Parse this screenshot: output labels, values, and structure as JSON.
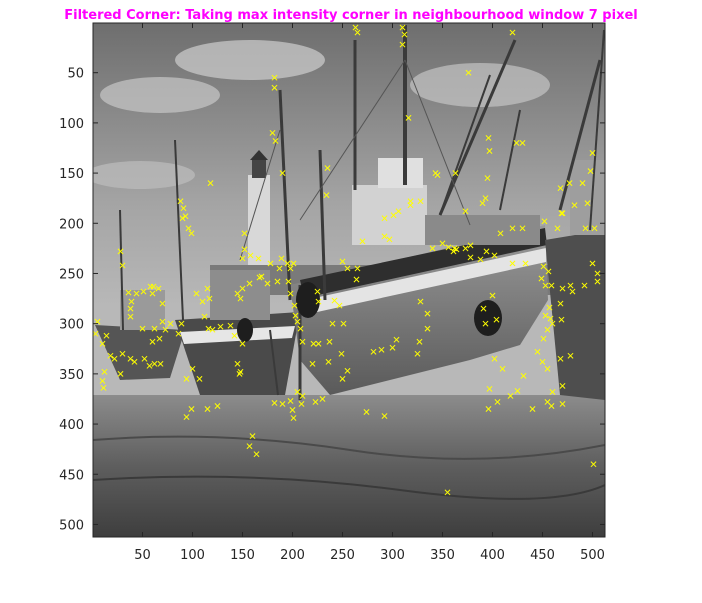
{
  "chart_data": {
    "type": "scatter",
    "title": "Filtered Corner: Taking max intensity corner in neighbourhood window 7 pixel",
    "title_color": "#ff00ff",
    "background": "grayscale photograph of fishing boats beached at low tide (512x512)",
    "marker": "x",
    "marker_color": "#ffff00",
    "xlim": [
      0.5,
      512.5
    ],
    "ylim": [
      0.5,
      512.5
    ],
    "y_reversed": true,
    "xticks": [
      50,
      100,
      150,
      200,
      250,
      300,
      350,
      400,
      450,
      500
    ],
    "yticks": [
      50,
      100,
      150,
      200,
      250,
      300,
      350,
      400,
      450,
      500
    ],
    "xlabel": "",
    "ylabel": "",
    "grid": false,
    "series": [
      {
        "points": [
          [
            263,
            5
          ],
          [
            310,
            5
          ],
          [
            312,
            12
          ],
          [
            310,
            22
          ],
          [
            265,
            10
          ],
          [
            420,
            10
          ],
          [
            376,
            50
          ],
          [
            182,
            55
          ],
          [
            182,
            65
          ],
          [
            316,
            95
          ],
          [
            396,
            115
          ],
          [
            397,
            128
          ],
          [
            424,
            120
          ],
          [
            430,
            120
          ],
          [
            180,
            110
          ],
          [
            183,
            118
          ],
          [
            190,
            150
          ],
          [
            235,
            145
          ],
          [
            343,
            150
          ],
          [
            363,
            150
          ],
          [
            234,
            172
          ],
          [
            390,
            180
          ],
          [
            395,
            155
          ],
          [
            345,
            152
          ],
          [
            318,
            178
          ],
          [
            318,
            182
          ],
          [
            328,
            178
          ],
          [
            393,
            175
          ],
          [
            500,
            130
          ],
          [
            498,
            148
          ],
          [
            490,
            160
          ],
          [
            477,
            160
          ],
          [
            468,
            165
          ],
          [
            469,
            190
          ],
          [
            482,
            182
          ],
          [
            495,
            180
          ],
          [
            493,
            205
          ],
          [
            502,
            205
          ],
          [
            470,
            190
          ],
          [
            465,
            205
          ],
          [
            452,
            198
          ],
          [
            420,
            205
          ],
          [
            430,
            205
          ],
          [
            408,
            210
          ],
          [
            373,
            188
          ],
          [
            306,
            188
          ],
          [
            301,
            192
          ],
          [
            292,
            195
          ],
          [
            292,
            213
          ],
          [
            297,
            216
          ],
          [
            270,
            218
          ],
          [
            265,
            245
          ],
          [
            264,
            256
          ],
          [
            255,
            245
          ],
          [
            250,
            238
          ],
          [
            350,
            220
          ],
          [
            356,
            224
          ],
          [
            364,
            226
          ],
          [
            373,
            225
          ],
          [
            378,
            222
          ],
          [
            394,
            228
          ],
          [
            402,
            232
          ],
          [
            420,
            240
          ],
          [
            433,
            240
          ],
          [
            451,
            243
          ],
          [
            456,
            248
          ],
          [
            449,
            255
          ],
          [
            453,
            262
          ],
          [
            459,
            262
          ],
          [
            470,
            265
          ],
          [
            478,
            262
          ],
          [
            492,
            262
          ],
          [
            500,
            240
          ],
          [
            505,
            250
          ],
          [
            505,
            258
          ],
          [
            480,
            268
          ],
          [
            468,
            280
          ],
          [
            457,
            284
          ],
          [
            453,
            292
          ],
          [
            458,
            295
          ],
          [
            460,
            300
          ],
          [
            469,
            296
          ],
          [
            455,
            306
          ],
          [
            451,
            315
          ],
          [
            445,
            328
          ],
          [
            450,
            338
          ],
          [
            455,
            345
          ],
          [
            468,
            335
          ],
          [
            478,
            332
          ],
          [
            470,
            362
          ],
          [
            460,
            368
          ],
          [
            455,
            378
          ],
          [
            459,
            382
          ],
          [
            470,
            380
          ],
          [
            440,
            385
          ],
          [
            431,
            352
          ],
          [
            425,
            367
          ],
          [
            418,
            372
          ],
          [
            405,
            378
          ],
          [
            396,
            385
          ],
          [
            397,
            365
          ],
          [
            402,
            335
          ],
          [
            410,
            345
          ],
          [
            393,
            300
          ],
          [
            391,
            285
          ],
          [
            362,
            225
          ],
          [
            340,
            225
          ],
          [
            328,
            278
          ],
          [
            335,
            290
          ],
          [
            335,
            305
          ],
          [
            327,
            318
          ],
          [
            325,
            330
          ],
          [
            304,
            316
          ],
          [
            300,
            324
          ],
          [
            289,
            326
          ],
          [
            281,
            328
          ],
          [
            255,
            347
          ],
          [
            249,
            330
          ],
          [
            240,
            300
          ],
          [
            247,
            282
          ],
          [
            242,
            277
          ],
          [
            225,
            268
          ],
          [
            226,
            278
          ],
          [
            226,
            320
          ],
          [
            237,
            318
          ],
          [
            236,
            338
          ],
          [
            250,
            355
          ],
          [
            251,
            300
          ],
          [
            205,
            298
          ],
          [
            208,
            305
          ],
          [
            210,
            318
          ],
          [
            221,
            320
          ],
          [
            220,
            340
          ],
          [
            205,
            368
          ],
          [
            210,
            372
          ],
          [
            230,
            375
          ],
          [
            223,
            378
          ],
          [
            198,
            377
          ],
          [
            209,
            380
          ],
          [
            200,
            386
          ],
          [
            201,
            394
          ],
          [
            182,
            379
          ],
          [
            190,
            380
          ],
          [
            203,
            292
          ],
          [
            202,
            282
          ],
          [
            198,
            270
          ],
          [
            196,
            258
          ],
          [
            185,
            258
          ],
          [
            175,
            260
          ],
          [
            169,
            253
          ],
          [
            167,
            254
          ],
          [
            157,
            260
          ],
          [
            145,
            270
          ],
          [
            150,
            265
          ],
          [
            148,
            275
          ],
          [
            198,
            245
          ],
          [
            201,
            240
          ],
          [
            195,
            240
          ],
          [
            189,
            235
          ],
          [
            187,
            245
          ],
          [
            178,
            240
          ],
          [
            166,
            235
          ],
          [
            158,
            232
          ],
          [
            152,
            226
          ],
          [
            152,
            210
          ],
          [
            150,
            235
          ],
          [
            112,
            293
          ],
          [
            110,
            278
          ],
          [
            104,
            270
          ],
          [
            115,
            265
          ],
          [
            117,
            275
          ],
          [
            116,
            305
          ],
          [
            120,
            306
          ],
          [
            128,
            303
          ],
          [
            138,
            302
          ],
          [
            142,
            312
          ],
          [
            150,
            320
          ],
          [
            147,
            350
          ],
          [
            145,
            340
          ],
          [
            148,
            348
          ],
          [
            125,
            382
          ],
          [
            115,
            385
          ],
          [
            94,
            393
          ],
          [
            99,
            385
          ],
          [
            107,
            355
          ],
          [
            100,
            345
          ],
          [
            94,
            355
          ],
          [
            86,
            310
          ],
          [
            89,
            300
          ],
          [
            78,
            300
          ],
          [
            70,
            298
          ],
          [
            73,
            306
          ],
          [
            70,
            280
          ],
          [
            66,
            265
          ],
          [
            61,
            263
          ],
          [
            58,
            263
          ],
          [
            60,
            270
          ],
          [
            51,
            268
          ],
          [
            44,
            270
          ],
          [
            39,
            278
          ],
          [
            36,
            269
          ],
          [
            38,
            285
          ],
          [
            38,
            293
          ],
          [
            50,
            305
          ],
          [
            62,
            305
          ],
          [
            67,
            315
          ],
          [
            60,
            318
          ],
          [
            68,
            340
          ],
          [
            62,
            340
          ],
          [
            57,
            342
          ],
          [
            52,
            335
          ],
          [
            42,
            338
          ],
          [
            38,
            335
          ],
          [
            30,
            330
          ],
          [
            22,
            335
          ],
          [
            18,
            332
          ],
          [
            12,
            348
          ],
          [
            10,
            357
          ],
          [
            11,
            364
          ],
          [
            28,
            350
          ],
          [
            10,
            320
          ],
          [
            14,
            312
          ],
          [
            3,
            310
          ],
          [
            5,
            298
          ],
          [
            30,
            242
          ],
          [
            28,
            228
          ],
          [
            88,
            178
          ],
          [
            91,
            185
          ],
          [
            90,
            195
          ],
          [
            93,
            193
          ],
          [
            96,
            205
          ],
          [
            99,
            210
          ],
          [
            118,
            160
          ],
          [
            164,
            430
          ],
          [
            157,
            422
          ],
          [
            160,
            412
          ],
          [
            274,
            388
          ],
          [
            292,
            392
          ],
          [
            355,
            468
          ],
          [
            501,
            440
          ],
          [
            361,
            228
          ],
          [
            378,
            234
          ],
          [
            388,
            236
          ],
          [
            400,
            272
          ],
          [
            404,
            296
          ]
        ]
      }
    ]
  }
}
